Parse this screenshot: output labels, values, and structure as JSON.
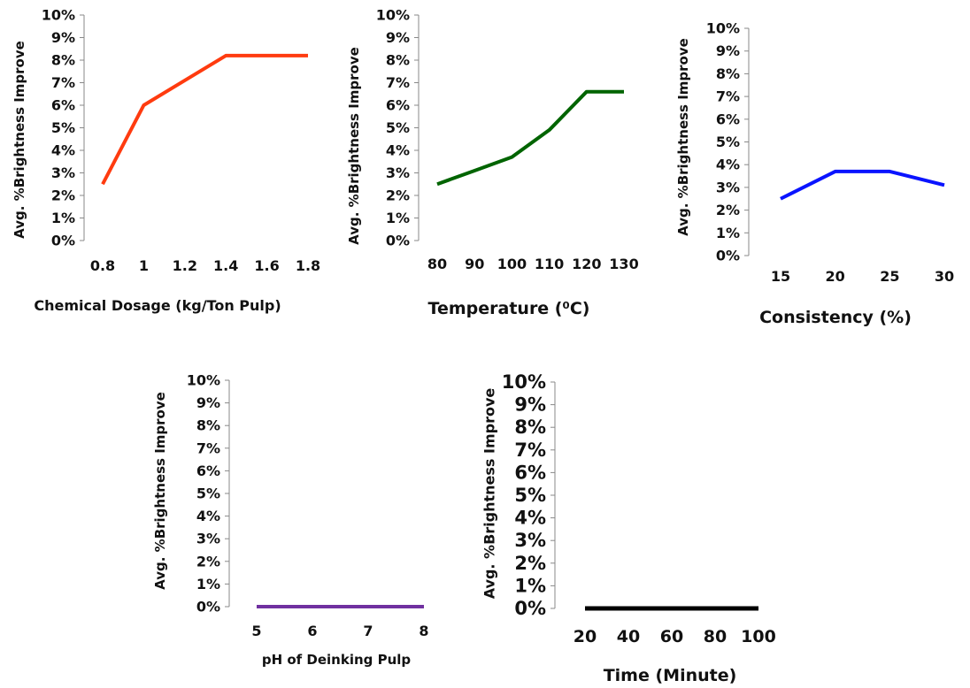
{
  "chart_data": [
    {
      "type": "line",
      "ylabel": "Avg. %Brightness Improve",
      "xlabel": "Chemical Dosage (kg/Ton Pulp)",
      "x": [
        "0.8",
        "1",
        "1.2",
        "1.4",
        "1.6",
        "1.8"
      ],
      "y_ticks": [
        "0%",
        "1%",
        "2%",
        "3%",
        "4%",
        "5%",
        "6%",
        "7%",
        "8%",
        "9%",
        "10%"
      ],
      "ylim": [
        0,
        10
      ],
      "series": [
        {
          "values": [
            2.5,
            6.0,
            7.1,
            8.2,
            8.2,
            8.2
          ],
          "color": "#ff3b0f"
        }
      ]
    },
    {
      "type": "line",
      "ylabel": "Avg. %Brightness Improve",
      "xlabel": "Temperature (⁰C)",
      "x": [
        "80",
        "90",
        "100",
        "110",
        "120",
        "130"
      ],
      "y_ticks": [
        "0%",
        "1%",
        "2%",
        "3%",
        "4%",
        "5%",
        "6%",
        "7%",
        "8%",
        "9%",
        "10%"
      ],
      "ylim": [
        0,
        10
      ],
      "series": [
        {
          "values": [
            2.5,
            3.1,
            3.7,
            4.9,
            6.6,
            6.6
          ],
          "color": "#006400"
        }
      ]
    },
    {
      "type": "line",
      "ylabel": "Avg. %Brightness Improve",
      "xlabel": "Consistency (%)",
      "x": [
        "15",
        "20",
        "25",
        "30"
      ],
      "y_ticks": [
        "0%",
        "1%",
        "2%",
        "3%",
        "4%",
        "5%",
        "6%",
        "7%",
        "8%",
        "9%",
        "10%"
      ],
      "ylim": [
        0,
        10
      ],
      "series": [
        {
          "values": [
            2.5,
            3.7,
            3.7,
            3.1
          ],
          "color": "#0a14ff"
        }
      ]
    },
    {
      "type": "line",
      "ylabel": "Avg. %Brightness Improve",
      "xlabel": "pH of Deinking Pulp",
      "x": [
        "5",
        "6",
        "7",
        "8"
      ],
      "y_ticks": [
        "0%",
        "1%",
        "2%",
        "3%",
        "4%",
        "5%",
        "6%",
        "7%",
        "8%",
        "9%",
        "10%"
      ],
      "ylim": [
        0,
        10
      ],
      "series": [
        {
          "values": [
            0,
            0,
            0,
            0
          ],
          "color": "#7030a0"
        }
      ]
    },
    {
      "type": "line",
      "ylabel": "Avg. %Brightness Improve",
      "xlabel": "Time (Minute)",
      "x": [
        "20",
        "40",
        "60",
        "80",
        "100"
      ],
      "y_ticks": [
        "0%",
        "1%",
        "2%",
        "3%",
        "4%",
        "5%",
        "6%",
        "7%",
        "8%",
        "9%",
        "10%"
      ],
      "ylim": [
        0,
        10
      ],
      "series": [
        {
          "values": [
            0,
            0,
            0,
            0,
            0
          ],
          "color": "#000000"
        }
      ]
    }
  ]
}
